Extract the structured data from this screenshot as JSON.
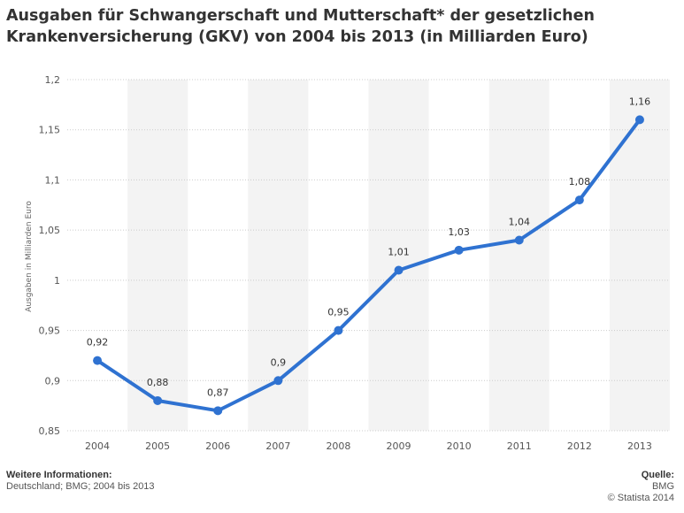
{
  "title": "Ausgaben für Schwangerschaft und Mutterschaft* der gesetzlichen Krankenversicherung (GKV) von 2004 bis 2013 (in Milliarden Euro)",
  "footer": {
    "info_heading": "Weitere Informationen:",
    "info_text": "Deutschland; BMG; 2004 bis 2013",
    "source_heading": "Quelle:",
    "source_text": "BMG",
    "copyright": "© Statista 2014"
  },
  "colors": {
    "line": "#2f72d1",
    "band": "#f3f3f3",
    "grid": "#cccccc"
  },
  "chart_data": {
    "type": "line",
    "title": "Ausgaben für Schwangerschaft und Mutterschaft* der gesetzlichen Krankenversicherung (GKV) von 2004 bis 2013 (in Milliarden Euro)",
    "xlabel": "",
    "ylabel": "Ausgaben in Milliarden Euro",
    "categories": [
      "2004",
      "2005",
      "2006",
      "2007",
      "2008",
      "2009",
      "2010",
      "2011",
      "2012",
      "2013"
    ],
    "values": [
      0.92,
      0.88,
      0.87,
      0.9,
      0.95,
      1.01,
      1.03,
      1.04,
      1.08,
      1.16
    ],
    "data_labels": [
      "0,92",
      "0,88",
      "0,87",
      "0,9",
      "0,95",
      "1,01",
      "1,03",
      "1,04",
      "1,08",
      "1,16"
    ],
    "ylim": [
      0.85,
      1.2
    ],
    "yticks": [
      0.85,
      0.9,
      0.95,
      1,
      1.05,
      1.1,
      1.15,
      1.2
    ],
    "ytick_labels": [
      "0,85",
      "0,9",
      "0,95",
      "1",
      "1,05",
      "1,1",
      "1,15",
      "1,2"
    ],
    "grid": true,
    "legend": "none"
  }
}
